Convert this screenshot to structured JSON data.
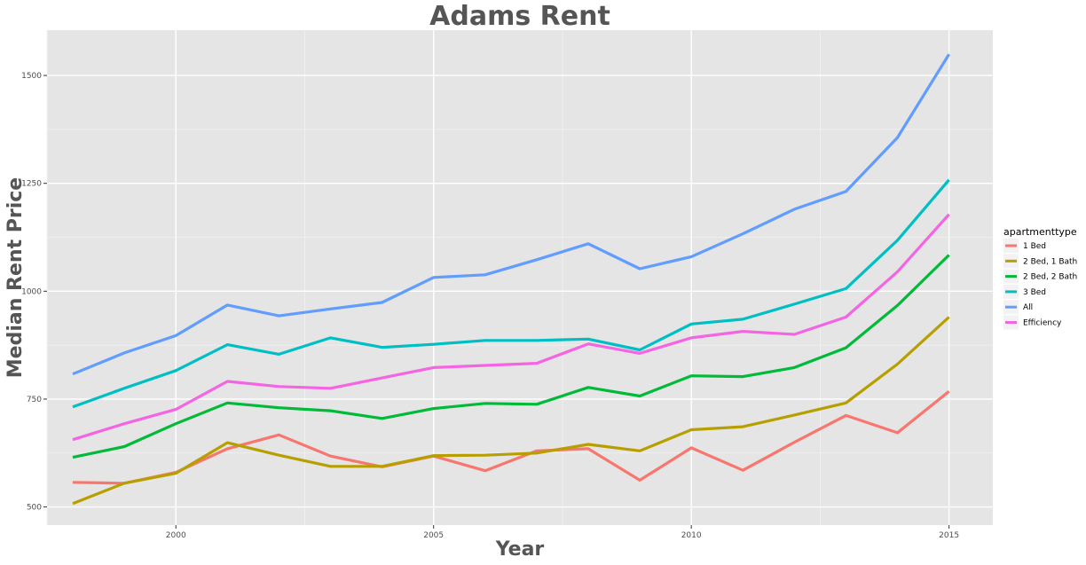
{
  "chart_data": {
    "type": "line",
    "title": "Adams Rent",
    "xlabel": "Year",
    "ylabel": "Median Rent Price",
    "x": [
      1998,
      1999,
      2000,
      2001,
      2002,
      2003,
      2004,
      2005,
      2006,
      2007,
      2008,
      2009,
      2010,
      2011,
      2012,
      2013,
      2014,
      2015
    ],
    "xticks": [
      2000,
      2005,
      2010,
      2015
    ],
    "yticks": [
      500,
      750,
      1000,
      1250,
      1500
    ],
    "xlim": [
      1997.5,
      2015.85
    ],
    "ylim": [
      458,
      1605
    ],
    "grid": true,
    "legend": {
      "title": "apartmenttype",
      "position": "right"
    },
    "series": [
      {
        "name": "1 Bed",
        "color": "#f8766d",
        "values": [
          557,
          555,
          580,
          635,
          667,
          618,
          593,
          618,
          584,
          630,
          635,
          562,
          637,
          585,
          650,
          712,
          672,
          768
        ]
      },
      {
        "name": "2 Bed, 1 Bath",
        "color": "#b79f00",
        "values": [
          508,
          555,
          578,
          649,
          620,
          594,
          594,
          619,
          620,
          625,
          645,
          630,
          679,
          686,
          713,
          741,
          831,
          940
        ]
      },
      {
        "name": "2 Bed, 2 Bath",
        "color": "#00ba38",
        "values": [
          615,
          640,
          693,
          741,
          730,
          723,
          705,
          728,
          740,
          738,
          777,
          757,
          804,
          802,
          823,
          869,
          967,
          1084
        ]
      },
      {
        "name": "3 Bed",
        "color": "#00bfc4",
        "values": [
          732,
          775,
          816,
          876,
          854,
          892,
          870,
          877,
          886,
          886,
          889,
          864,
          924,
          935,
          970,
          1006,
          1118,
          1258
        ]
      },
      {
        "name": "All",
        "color": "#619cff",
        "values": [
          808,
          857,
          897,
          968,
          943,
          959,
          974,
          1032,
          1038,
          1073,
          1110,
          1052,
          1080,
          1133,
          1190,
          1231,
          1356,
          1549
        ]
      },
      {
        "name": "Efficiency",
        "color": "#f564e3",
        "values": [
          656,
          693,
          726,
          791,
          779,
          775,
          799,
          823,
          828,
          833,
          878,
          856,
          892,
          907,
          900,
          940,
          1045,
          1178
        ]
      }
    ]
  }
}
